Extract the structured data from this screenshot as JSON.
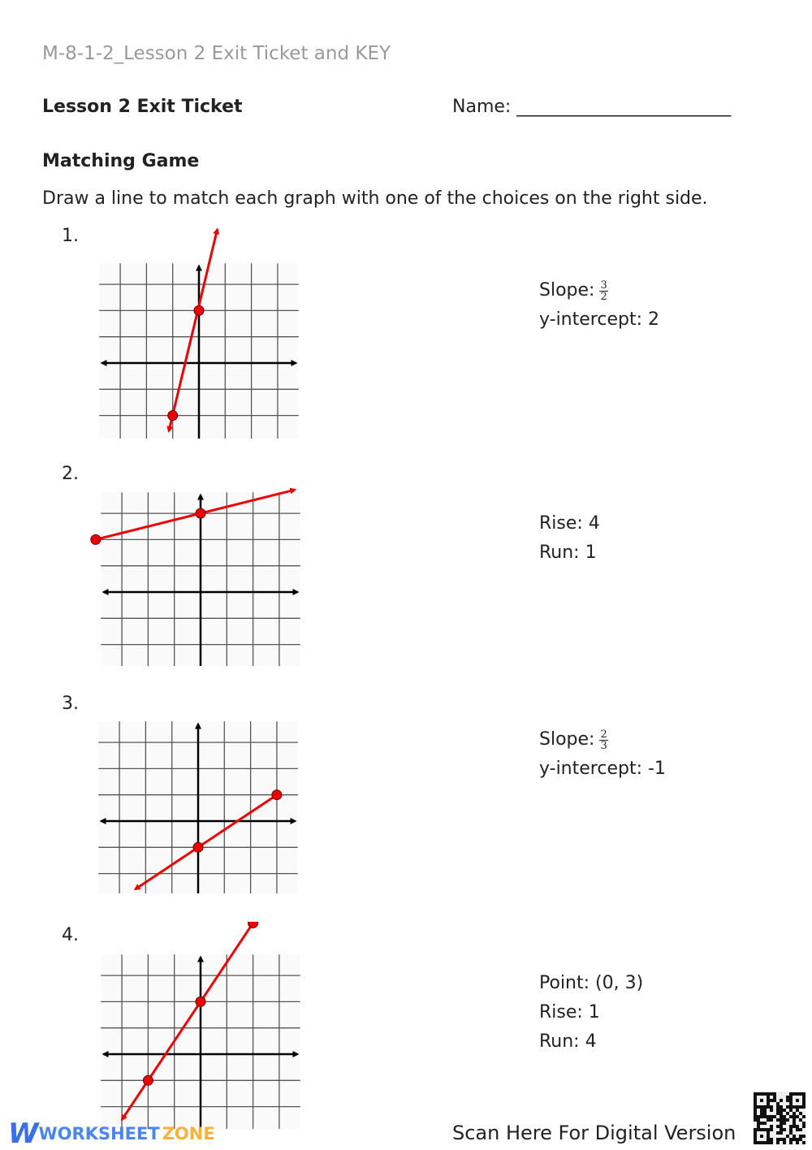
{
  "header": {
    "doc_title": "M-8-1-2_Lesson 2 Exit Ticket and KEY",
    "ticket_title": "Lesson 2 Exit Ticket",
    "name_label": "Name: ________________________"
  },
  "section": {
    "title": "Matching Game",
    "instructions": "Draw a line to match each graph with one of the choices on the right side."
  },
  "colors": {
    "line": "#ee0000",
    "axis": "#000000",
    "grid": "#555555"
  },
  "graphs": [
    {
      "number": "1.",
      "points": [
        [
          0,
          2
        ],
        [
          -1,
          -2
        ]
      ],
      "arrow_from": [
        -1.15,
        -2.6
      ],
      "arrow_to": [
        0.7,
        5.1
      ],
      "arrowheads": "both"
    },
    {
      "number": "2.",
      "points": [
        [
          0,
          3
        ],
        [
          -4,
          2
        ]
      ],
      "arrow_from": [
        -4,
        2
      ],
      "arrow_to": [
        3.6,
        3.9
      ],
      "arrowheads": "both"
    },
    {
      "number": "3.",
      "points": [
        [
          0,
          -1
        ],
        [
          3,
          1
        ]
      ],
      "arrow_from": [
        -2.4,
        -2.6
      ],
      "arrow_to": [
        3,
        1
      ],
      "arrowheads": "start"
    },
    {
      "number": "4.",
      "points": [
        [
          0,
          2
        ],
        [
          -2,
          -1
        ],
        [
          2,
          5
        ]
      ],
      "arrow_from": [
        -3,
        -2.5
      ],
      "arrow_to": [
        2,
        5
      ],
      "arrowheads": "both"
    }
  ],
  "choices": [
    {
      "lines": [
        "Slope:",
        "y-intercept: 2"
      ],
      "frac": [
        "3",
        "2"
      ]
    },
    {
      "lines": [
        "Rise: 4",
        "Run: 1"
      ]
    },
    {
      "lines": [
        "Slope:",
        "y-intercept: -1"
      ],
      "frac": [
        "2",
        "3"
      ]
    },
    {
      "lines": [
        "Point: (0, 3)",
        "Rise: 1",
        "Run: 4"
      ]
    }
  ],
  "footer": {
    "logo_a": "WORKSHEET",
    "logo_b": "ZONE",
    "scan_text": "Scan Here For Digital Version",
    "qr_icon": "qr-code-icon"
  }
}
